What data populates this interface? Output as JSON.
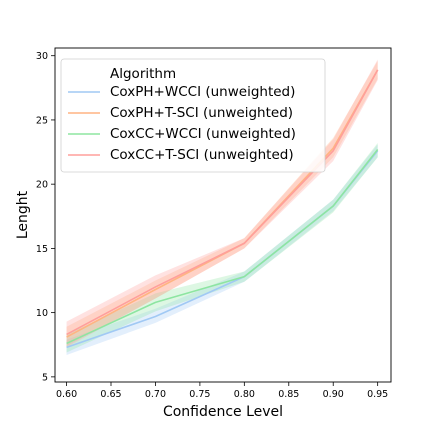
{
  "chart_data": {
    "type": "line",
    "title": "",
    "xlabel": "Confidence Level",
    "ylabel": "Lenght",
    "x": [
      0.6,
      0.7,
      0.8,
      0.9,
      0.95
    ],
    "x_ticks": [
      "0.60",
      "0.65",
      "0.70",
      "0.75",
      "0.80",
      "0.85",
      "0.90",
      "0.95"
    ],
    "y_ticks": [
      "5",
      "10",
      "15",
      "20",
      "25",
      "30"
    ],
    "xlim": [
      0.587,
      0.965
    ],
    "ylim": [
      4.6,
      30.6
    ],
    "grid": false,
    "legend": {
      "title": "Algorithm",
      "placement": "top-left"
    },
    "series": [
      {
        "name": "CoxPH+WCCI (unweighted)",
        "color": "#a1c9f4",
        "values": [
          7.3,
          9.7,
          12.8,
          18.3,
          22.6
        ],
        "band_lower": [
          6.7,
          9.2,
          12.4,
          17.9,
          22.1
        ],
        "band_upper": [
          7.9,
          10.3,
          13.2,
          18.8,
          23.1
        ]
      },
      {
        "name": "CoxPH+T-SCI (unweighted)",
        "color": "#ffb482",
        "values": [
          8.1,
          11.8,
          15.4,
          22.8,
          28.9
        ],
        "band_lower": [
          7.4,
          11.1,
          15.0,
          22.1,
          28.2
        ],
        "band_upper": [
          8.9,
          12.5,
          15.8,
          23.6,
          29.6
        ]
      },
      {
        "name": "CoxCC+WCCI (unweighted)",
        "color": "#8de5a1",
        "values": [
          7.6,
          10.8,
          12.8,
          18.3,
          22.7
        ],
        "band_lower": [
          6.9,
          10.1,
          12.4,
          17.8,
          22.1
        ],
        "band_upper": [
          8.3,
          11.5,
          13.2,
          18.8,
          23.2
        ]
      },
      {
        "name": "CoxCC+T-SCI (unweighted)",
        "color": "#ff9f9b",
        "values": [
          8.3,
          12.0,
          15.4,
          22.6,
          28.9
        ],
        "band_lower": [
          7.3,
          11.1,
          15.0,
          21.8,
          28.1
        ],
        "band_upper": [
          9.3,
          12.9,
          15.8,
          23.5,
          29.7
        ]
      }
    ]
  }
}
